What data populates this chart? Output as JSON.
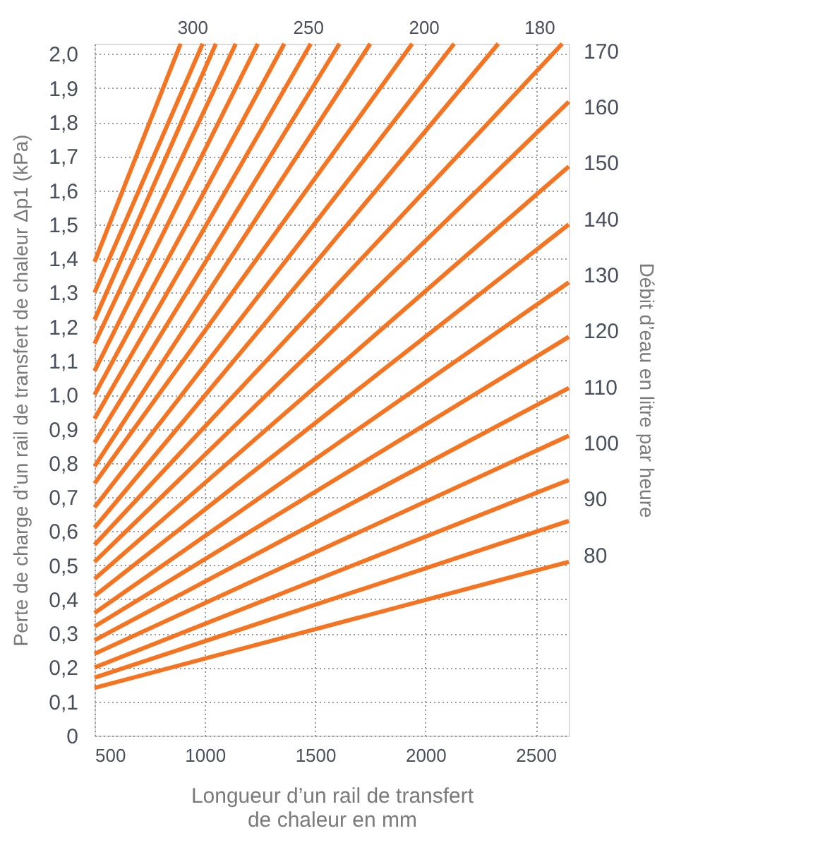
{
  "chart_data": {
    "type": "line",
    "xlabel": "Longueur d’un rail de transfert de chaleur en mm",
    "ylabel": "Perte de charge d’un rail de transfert de chaleur Δp1 (kPa)",
    "y2label": "Débit d’eau en litre par heure",
    "xlim": [
      500,
      2650
    ],
    "xticks": [
      500,
      1000,
      1500,
      2000,
      2500
    ],
    "ylim": [
      0,
      2.03
    ],
    "yticks": [
      0,
      {
        "value": 0.1,
        "label": "0,1"
      },
      {
        "value": 0.2,
        "label": "0,2"
      },
      {
        "value": 0.3,
        "label": "0,3"
      },
      {
        "value": 0.4,
        "label": "0,4"
      },
      {
        "value": 0.5,
        "label": "0,5"
      },
      {
        "value": 0.6,
        "label": "0,6"
      },
      {
        "value": 0.7,
        "label": "0,7"
      },
      {
        "value": 0.8,
        "label": "0,8"
      },
      {
        "value": 0.9,
        "label": "0,9"
      },
      {
        "value": 1.0,
        "label": "1,0"
      },
      {
        "value": 1.1,
        "label": "1,1"
      },
      {
        "value": 1.2,
        "label": "1,2"
      },
      {
        "value": 1.3,
        "label": "1,3"
      },
      {
        "value": 1.4,
        "label": "1,4"
      },
      {
        "value": 1.5,
        "label": "1,5"
      },
      {
        "value": 1.6,
        "label": "1,6"
      },
      {
        "value": 1.7,
        "label": "1,7"
      },
      {
        "value": 1.8,
        "label": "1,8"
      },
      {
        "value": 1.9,
        "label": "1,9"
      },
      {
        "value": 2.0,
        "label": "2,0"
      }
    ],
    "y2lim": [
      47.7,
      171.2
    ],
    "y2ticks": [
      80,
      90,
      100,
      110,
      120,
      130,
      140,
      150,
      160,
      170
    ],
    "annotations": [
      "300",
      "250",
      "200",
      "180"
    ],
    "grid": true,
    "line_style": "solid",
    "marker": "none",
    "series": [
      {
        "color": "#f47421",
        "x": [
          500,
          2650
        ],
        "values": [
          0.14,
          0.51
        ]
      },
      {
        "color": "#f47421",
        "x": [
          500,
          2650
        ],
        "values": [
          0.17,
          0.63
        ]
      },
      {
        "color": "#f47421",
        "x": [
          500,
          2650
        ],
        "values": [
          0.2,
          0.75
        ]
      },
      {
        "color": "#f47421",
        "x": [
          500,
          2650
        ],
        "values": [
          0.24,
          0.88
        ]
      },
      {
        "color": "#f47421",
        "x": [
          500,
          2650
        ],
        "values": [
          0.28,
          1.02
        ]
      },
      {
        "color": "#f47421",
        "x": [
          500,
          2650
        ],
        "values": [
          0.32,
          1.17
        ]
      },
      {
        "color": "#f47421",
        "x": [
          500,
          2650
        ],
        "values": [
          0.36,
          1.33
        ]
      },
      {
        "color": "#f47421",
        "x": [
          500,
          2650
        ],
        "values": [
          0.41,
          1.5
        ]
      },
      {
        "color": "#f47421",
        "x": [
          500,
          2650
        ],
        "values": [
          0.46,
          1.67
        ]
      },
      {
        "color": "#f47421",
        "x": [
          500,
          2650
        ],
        "values": [
          0.51,
          1.86
        ]
      },
      {
        "color": "#f47421",
        "x": [
          500,
          2620
        ],
        "values": [
          0.56,
          2.03
        ]
      },
      {
        "color": "#f47421",
        "x": [
          500,
          2330
        ],
        "values": [
          0.61,
          2.03
        ]
      },
      {
        "color": "#f47421",
        "x": [
          500,
          2130
        ],
        "values": [
          0.67,
          2.03
        ]
      },
      {
        "color": "#f47421",
        "x": [
          500,
          1940
        ],
        "values": [
          0.74,
          2.03
        ]
      },
      {
        "color": "#f47421",
        "x": [
          500,
          1750
        ],
        "values": [
          0.79,
          2.03
        ]
      },
      {
        "color": "#f47421",
        "x": [
          500,
          1610
        ],
        "values": [
          0.86,
          2.03
        ]
      },
      {
        "color": "#f47421",
        "x": [
          500,
          1480
        ],
        "values": [
          0.93,
          2.03
        ]
      },
      {
        "color": "#f47421",
        "x": [
          500,
          1360
        ],
        "values": [
          1.0,
          2.03
        ]
      },
      {
        "color": "#f47421",
        "x": [
          500,
          1240
        ],
        "values": [
          1.07,
          2.03
        ]
      },
      {
        "color": "#f47421",
        "x": [
          500,
          1140
        ],
        "values": [
          1.15,
          2.03
        ]
      },
      {
        "color": "#f47421",
        "x": [
          500,
          1050
        ],
        "values": [
          1.22,
          2.03
        ]
      },
      {
        "color": "#f47421",
        "x": [
          500,
          990
        ],
        "values": [
          1.3,
          2.03
        ]
      },
      {
        "color": "#f47421",
        "x": [
          500,
          890
        ],
        "values": [
          1.39,
          2.03
        ]
      }
    ]
  }
}
